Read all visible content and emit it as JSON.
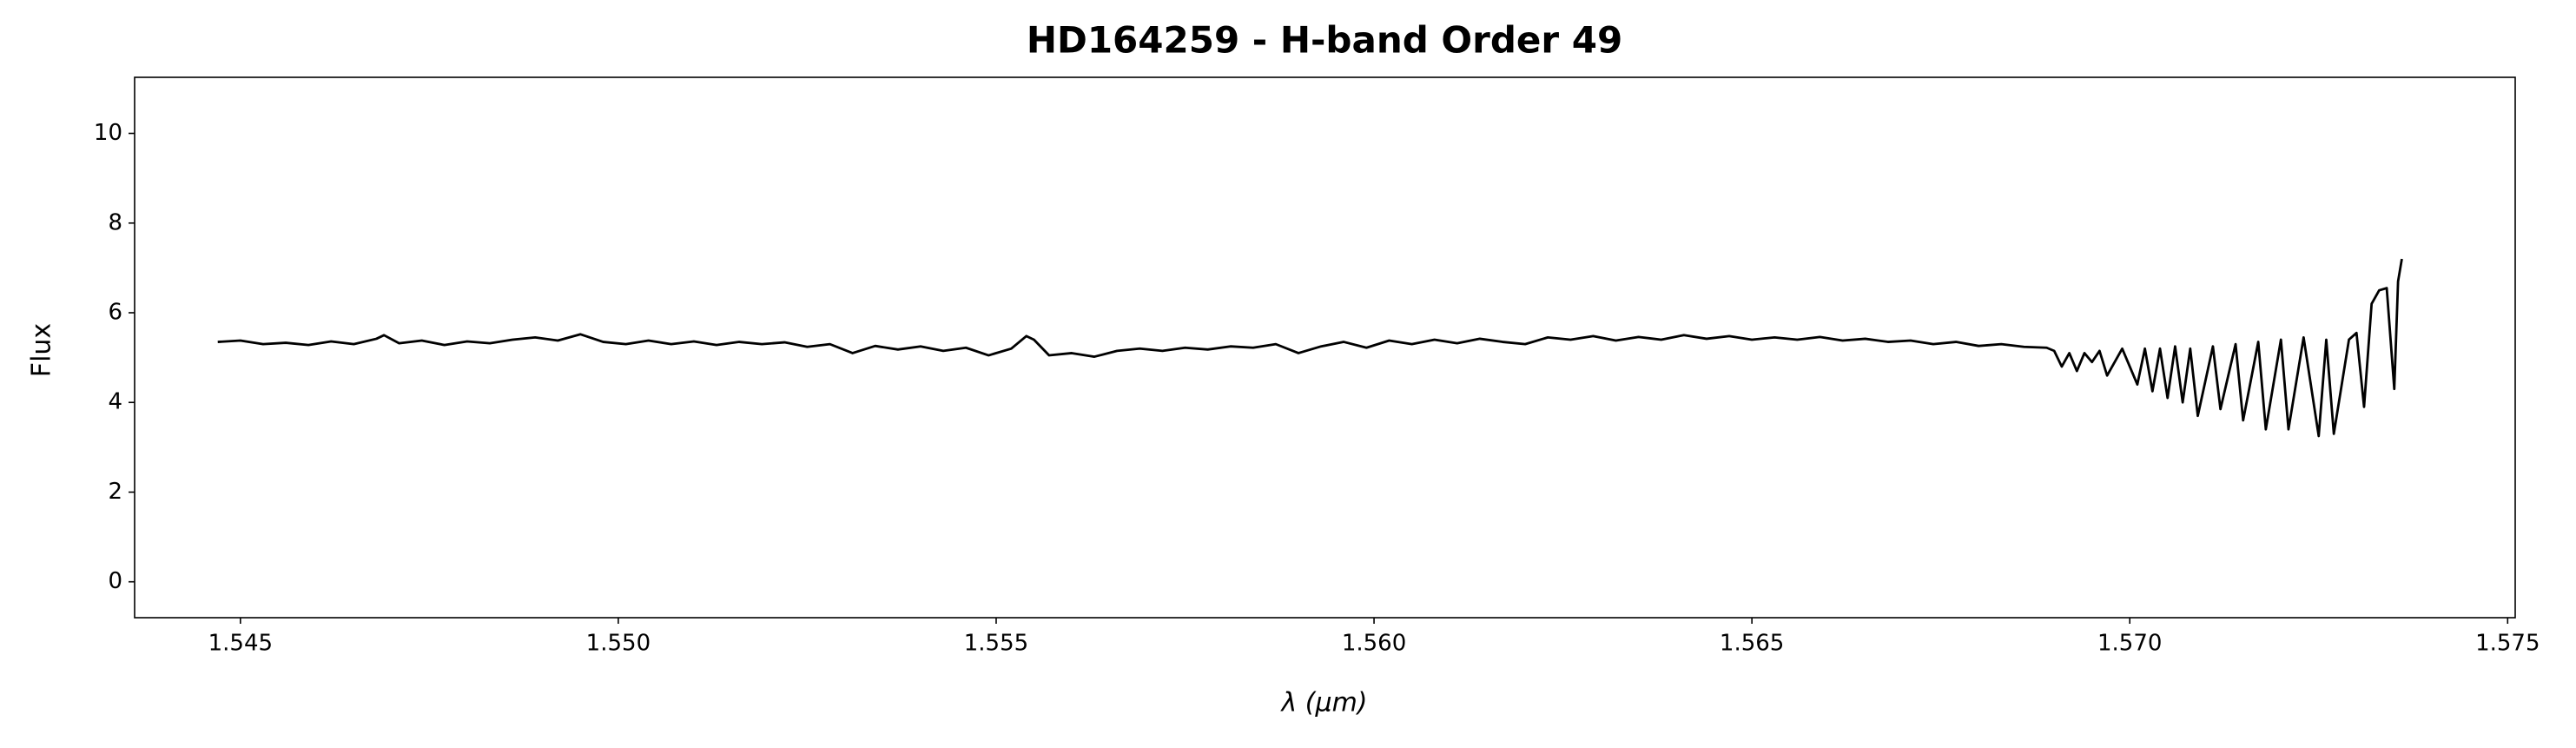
{
  "chart_data": {
    "type": "line",
    "title": "HD164259 - H-band Order 49",
    "xlabel": "λ (μm)",
    "ylabel": "Flux",
    "xlim": [
      1.5436,
      1.5751
    ],
    "ylim": [
      -0.8,
      11.25
    ],
    "xticks": [
      1.545,
      {
        "value": 1.55,
        "label": "1.550"
      },
      1.555,
      {
        "value": 1.56,
        "label": "1.560"
      },
      1.565,
      {
        "value": 1.57,
        "label": "1.570"
      },
      1.575
    ],
    "yticks": [
      0,
      2,
      4,
      6,
      8,
      10
    ],
    "grid": false,
    "series": [
      {
        "color": "#000000",
        "x": [
          1.5447,
          1.545,
          1.5453,
          1.5456,
          1.5459,
          1.5462,
          1.5465,
          1.5468,
          1.5469,
          1.5471,
          1.5474,
          1.5477,
          1.548,
          1.5483,
          1.5486,
          1.5489,
          1.5492,
          1.5495,
          1.5498,
          1.5501,
          1.5504,
          1.5507,
          1.551,
          1.5513,
          1.5516,
          1.5519,
          1.5522,
          1.5525,
          1.5528,
          1.5531,
          1.5534,
          1.5537,
          1.554,
          1.5543,
          1.5546,
          1.5549,
          1.5552,
          1.5554,
          1.5555,
          1.5557,
          1.556,
          1.5563,
          1.5566,
          1.5569,
          1.5572,
          1.5575,
          1.5578,
          1.5581,
          1.5584,
          1.5587,
          1.559,
          1.5593,
          1.5596,
          1.5599,
          1.5602,
          1.5605,
          1.5608,
          1.5611,
          1.5614,
          1.5617,
          1.562,
          1.5623,
          1.5626,
          1.5629,
          1.5632,
          1.5635,
          1.5638,
          1.5641,
          1.5644,
          1.5647,
          1.565,
          1.5653,
          1.5656,
          1.5659,
          1.5662,
          1.5665,
          1.5668,
          1.5671,
          1.5674,
          1.5677,
          1.568,
          1.5683,
          1.5686,
          1.5689,
          1.569,
          1.5691,
          1.5692,
          1.5693,
          1.5694,
          1.5695,
          1.5696,
          1.5697,
          1.5699,
          1.5701,
          1.5702,
          1.5703,
          1.5704,
          1.5705,
          1.5706,
          1.5707,
          1.5708,
          1.5709,
          1.5711,
          1.5712,
          1.5714,
          1.5715,
          1.5717,
          1.5718,
          1.572,
          1.5721,
          1.5723,
          1.5725,
          1.5726,
          1.5727,
          1.5729,
          1.573,
          1.5731,
          1.5732,
          1.5733,
          1.5734,
          1.5735,
          1.57355,
          1.5736
        ],
        "values": [
          5.35,
          5.38,
          5.3,
          5.33,
          5.28,
          5.36,
          5.3,
          5.42,
          5.5,
          5.32,
          5.38,
          5.28,
          5.36,
          5.32,
          5.4,
          5.45,
          5.38,
          5.52,
          5.35,
          5.3,
          5.38,
          5.3,
          5.36,
          5.28,
          5.35,
          5.3,
          5.34,
          5.24,
          5.3,
          5.1,
          5.26,
          5.18,
          5.25,
          5.15,
          5.22,
          5.05,
          5.2,
          5.48,
          5.4,
          5.05,
          5.1,
          5.02,
          5.15,
          5.2,
          5.15,
          5.22,
          5.18,
          5.25,
          5.22,
          5.3,
          5.1,
          5.25,
          5.35,
          5.22,
          5.38,
          5.3,
          5.4,
          5.32,
          5.42,
          5.35,
          5.3,
          5.45,
          5.4,
          5.48,
          5.38,
          5.46,
          5.4,
          5.5,
          5.42,
          5.48,
          5.4,
          5.45,
          5.4,
          5.46,
          5.38,
          5.42,
          5.35,
          5.38,
          5.3,
          5.35,
          5.26,
          5.3,
          5.24,
          5.22,
          5.15,
          4.8,
          5.1,
          4.7,
          5.1,
          4.9,
          5.15,
          4.6,
          5.2,
          4.4,
          5.2,
          4.25,
          5.2,
          4.1,
          5.25,
          4.0,
          5.2,
          3.7,
          5.25,
          3.85,
          5.3,
          3.6,
          5.35,
          3.4,
          5.4,
          3.4,
          5.45,
          3.25,
          5.4,
          3.3,
          5.4,
          5.55,
          3.9,
          6.2,
          6.5,
          6.55,
          4.3,
          6.7,
          7.2
        ]
      }
    ]
  }
}
